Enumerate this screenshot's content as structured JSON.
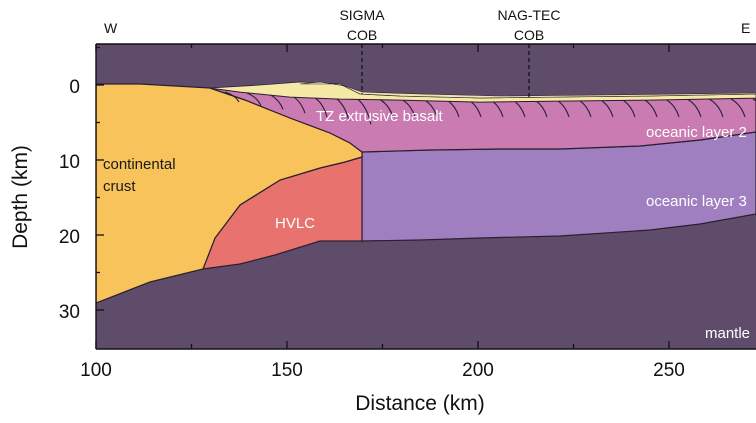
{
  "axes": {
    "xlabel": "Distance (km)",
    "ylabel": "Depth (km)",
    "x_ticks": [
      "100",
      "150",
      "200",
      "250"
    ],
    "y_ticks": [
      "0",
      "10",
      "20",
      "30"
    ]
  },
  "top_labels": {
    "west": "W",
    "east": "E",
    "sigma_line1": "SIGMA",
    "sigma_line2": "COB",
    "nagtec_line1": "NAG-TEC",
    "nagtec_line2": "COB"
  },
  "layers": {
    "continental_line1": "continental",
    "continental_line2": "crust",
    "hvlc": "HVLC",
    "tz_basalt": "TZ extrusive basalt",
    "oceanic_layer2": "oceanic layer 2",
    "oceanic_layer3": "oceanic layer 3",
    "mantle": "mantle"
  },
  "colors": {
    "continental_crust": "#f9c35c",
    "hvlc": "#e8736e",
    "tz_basalt": "#c97bb2",
    "oceanic_layer3": "#a07fc0",
    "mantle": "#5f4c6b",
    "sediment": "#f6e8a6"
  }
}
